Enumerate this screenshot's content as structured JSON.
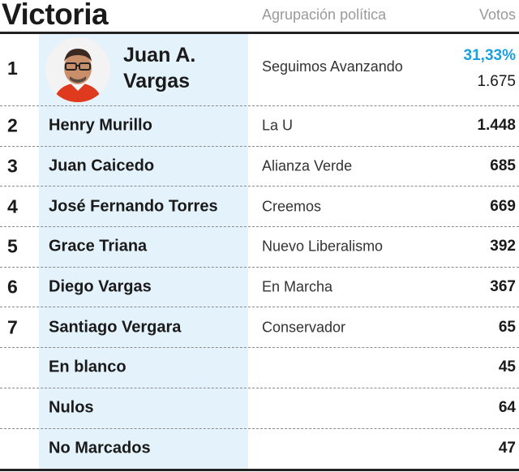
{
  "header": {
    "city": "Victoria",
    "party_col": "Agrupación política",
    "votes_col": "Votos"
  },
  "colors": {
    "highlight": "#e4f2fb",
    "accent": "#1a9fe0"
  },
  "winner": {
    "rank": "1",
    "name_line1": "Juan A.",
    "name_line2": "Vargas",
    "party": "Seguimos Avanzando",
    "percent": "31,33%",
    "votes": "1.675"
  },
  "rows": [
    {
      "rank": "2",
      "name": "Henry Murillo",
      "party": "La U",
      "votes": "1.448"
    },
    {
      "rank": "3",
      "name": "Juan Caicedo",
      "party": "Alianza Verde",
      "votes": "685"
    },
    {
      "rank": "4",
      "name": "José Fernando Torres",
      "party": "Creemos",
      "votes": "669"
    },
    {
      "rank": "5",
      "name": "Grace Triana",
      "party": "Nuevo Liberalismo",
      "votes": "392"
    },
    {
      "rank": "6",
      "name": "Diego Vargas",
      "party": "En Marcha",
      "votes": "367"
    },
    {
      "rank": "7",
      "name": "Santiago Vergara",
      "party": "Conservador",
      "votes": "65"
    },
    {
      "rank": "",
      "name": "En blanco",
      "party": "",
      "votes": "45"
    },
    {
      "rank": "",
      "name": "Nulos",
      "party": "",
      "votes": "64"
    },
    {
      "rank": "",
      "name": "No Marcados",
      "party": "",
      "votes": "47"
    }
  ]
}
